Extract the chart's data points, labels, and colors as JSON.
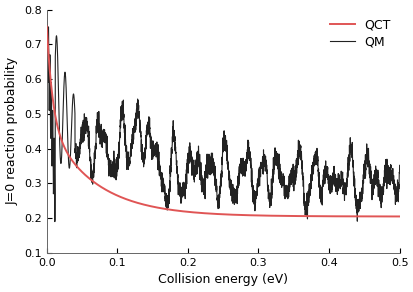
{
  "title": "",
  "xlabel": "Collision energy (eV)",
  "ylabel": "J=0 reaction probability",
  "xlim": [
    0,
    0.5
  ],
  "ylim": [
    0.1,
    0.8
  ],
  "yticks": [
    0.1,
    0.2,
    0.3,
    0.4,
    0.5,
    0.6,
    0.7,
    0.8
  ],
  "xticks": [
    0.0,
    0.1,
    0.2,
    0.3,
    0.4,
    0.5
  ],
  "qct_color": "#e05555",
  "qm_color": "#222222",
  "legend_labels": [
    "QCT",
    "QM"
  ],
  "background_color": "#ffffff",
  "figsize": [
    4.14,
    2.92
  ],
  "dpi": 100
}
